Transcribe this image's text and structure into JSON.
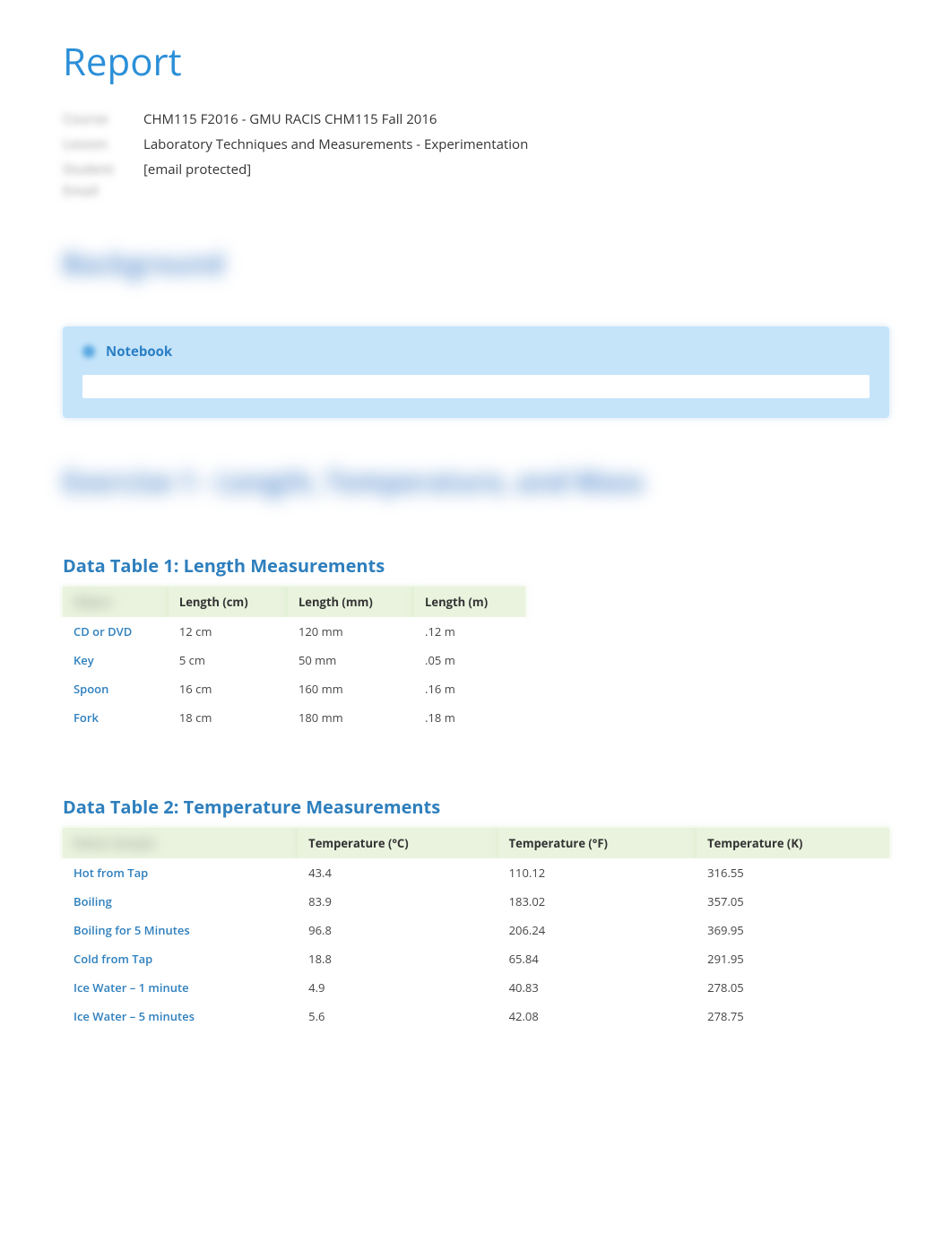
{
  "page_title": "Report",
  "meta": {
    "label1_blur": "Course",
    "value1": "CHM115 F2016 - GMU RACIS CHM115 Fall 2016",
    "label2_blur": "Lesson",
    "value2": "Laboratory Techniques and Measurements - Experimentation",
    "label3_blur": "Student Email",
    "value3": "[email protected]"
  },
  "background_heading_blur": "Background",
  "notebook": {
    "title": "Notebook"
  },
  "exercise_heading_blur": "Exercise 1 - Length, Temperature, and Mass",
  "table1": {
    "title": "Data Table 1: Length Measurements",
    "headers_blur": "Object",
    "headers": [
      "Length (cm)",
      "Length (mm)",
      "Length (m)"
    ],
    "rows": [
      {
        "label": "CD or DVD",
        "c0": "12 cm",
        "c1": "120 mm",
        "c2": ".12 m"
      },
      {
        "label": "Key",
        "c0": "5 cm",
        "c1": "50 mm",
        "c2": ".05 m"
      },
      {
        "label": "Spoon",
        "c0": "16 cm",
        "c1": "160 mm",
        "c2": ".16 m"
      },
      {
        "label": "Fork",
        "c0": "18 cm",
        "c1": "180 mm",
        "c2": ".18 m"
      }
    ]
  },
  "table2": {
    "title": "Data Table 2: Temperature Measurements",
    "headers_blur": "Water Sample",
    "headers": [
      "Temperature (°C)",
      "Temperature (°F)",
      "Temperature (K)"
    ],
    "rows": [
      {
        "label": "Hot from Tap",
        "c0": "43.4",
        "c1": "110.12",
        "c2": "316.55"
      },
      {
        "label": "Boiling",
        "c0": "83.9",
        "c1": "183.02",
        "c2": "357.05"
      },
      {
        "label": "Boiling for 5 Minutes",
        "c0": "96.8",
        "c1": "206.24",
        "c2": "369.95"
      },
      {
        "label": "Cold from Tap",
        "c0": "18.8",
        "c1": "65.84",
        "c2": "291.95"
      },
      {
        "label": "Ice Water – 1 minute",
        "c0": "4.9",
        "c1": "40.83",
        "c2": "278.05"
      },
      {
        "label": "Ice Water – 5 minutes",
        "c0": "5.6",
        "c1": "42.08",
        "c2": "278.75"
      }
    ]
  },
  "colors": {
    "title": "#2b8fd8",
    "section_blue": "#2e7fbd",
    "notebook_bg": "#c5e4fa",
    "table_header_bg": "#e9f3de",
    "row_label": "#2e7fbd",
    "text": "#333333"
  }
}
